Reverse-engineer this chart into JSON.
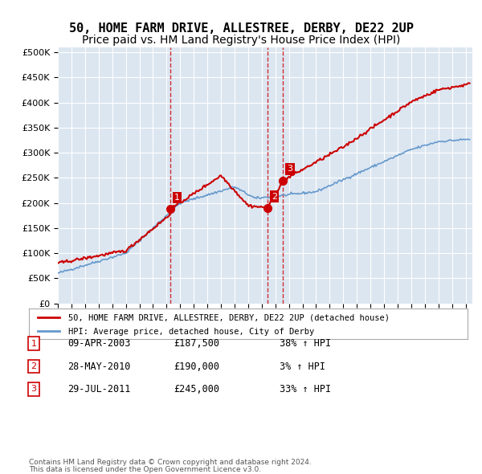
{
  "title": "50, HOME FARM DRIVE, ALLESTREE, DERBY, DE22 2UP",
  "subtitle": "Price paid vs. HM Land Registry's House Price Index (HPI)",
  "title_fontsize": 11,
  "subtitle_fontsize": 10,
  "ylabel_ticks": [
    "£0",
    "£50K",
    "£100K",
    "£150K",
    "£200K",
    "£250K",
    "£300K",
    "£350K",
    "£400K",
    "£450K",
    "£500K"
  ],
  "ytick_values": [
    0,
    50000,
    100000,
    150000,
    200000,
    250000,
    300000,
    350000,
    400000,
    450000,
    500000
  ],
  "ylim": [
    0,
    510000
  ],
  "xlim_start": 1995.0,
  "xlim_end": 2025.5,
  "hpi_color": "#6699cc",
  "price_color": "#cc0000",
  "vline_color": "#cc0000",
  "marker_color": "#cc0000",
  "transactions": [
    {
      "label": "1",
      "date_num": 2003.27,
      "price": 187500,
      "pct": "38%",
      "date_str": "09-APR-2003"
    },
    {
      "label": "2",
      "date_num": 2010.41,
      "price": 190000,
      "pct": "3%",
      "date_str": "28-MAY-2010"
    },
    {
      "label": "3",
      "date_num": 2011.57,
      "price": 245000,
      "pct": "33%",
      "date_str": "29-JUL-2011"
    }
  ],
  "legend_label_red": "50, HOME FARM DRIVE, ALLESTREE, DERBY, DE22 2UP (detached house)",
  "legend_label_blue": "HPI: Average price, detached house, City of Derby",
  "footer1": "Contains HM Land Registry data © Crown copyright and database right 2024.",
  "footer2": "This data is licensed under the Open Government Licence v3.0.",
  "table_rows": [
    [
      "1",
      "09-APR-2003",
      "£187,500",
      "38% ↑ HPI"
    ],
    [
      "2",
      "28-MAY-2010",
      "£190,000",
      "3% ↑ HPI"
    ],
    [
      "3",
      "29-JUL-2011",
      "£245,000",
      "33% ↑ HPI"
    ]
  ]
}
